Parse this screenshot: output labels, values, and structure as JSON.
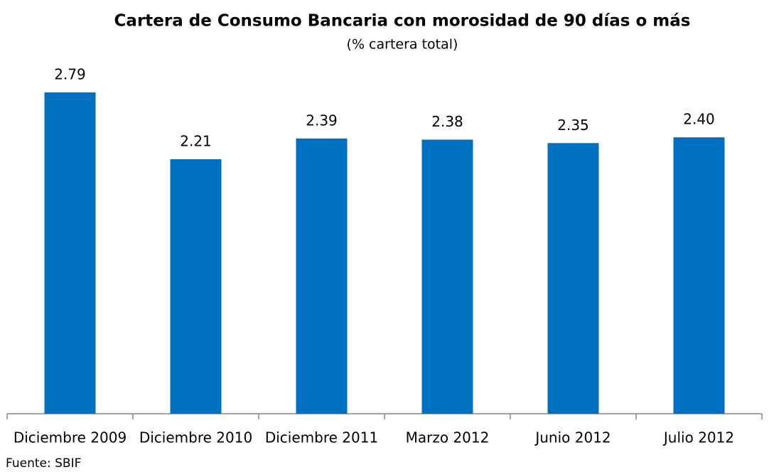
{
  "chart_data": {
    "type": "bar",
    "title": "Cartera de Consumo Bancaria con morosidad de 90 días o más",
    "subtitle": "(% cartera total)",
    "categories": [
      "Diciembre 2009",
      "Diciembre 2010",
      "Diciembre 2011",
      "Marzo 2012",
      "Junio 2012",
      "Julio 2012"
    ],
    "values": [
      2.79,
      2.21,
      2.39,
      2.38,
      2.35,
      2.4
    ],
    "value_labels": [
      "2.79",
      "2.21",
      "2.39",
      "2.38",
      "2.35",
      "2.40"
    ],
    "color": "#0070c0",
    "ylim": [
      0,
      3
    ],
    "source": "Fuente: SBIF"
  }
}
